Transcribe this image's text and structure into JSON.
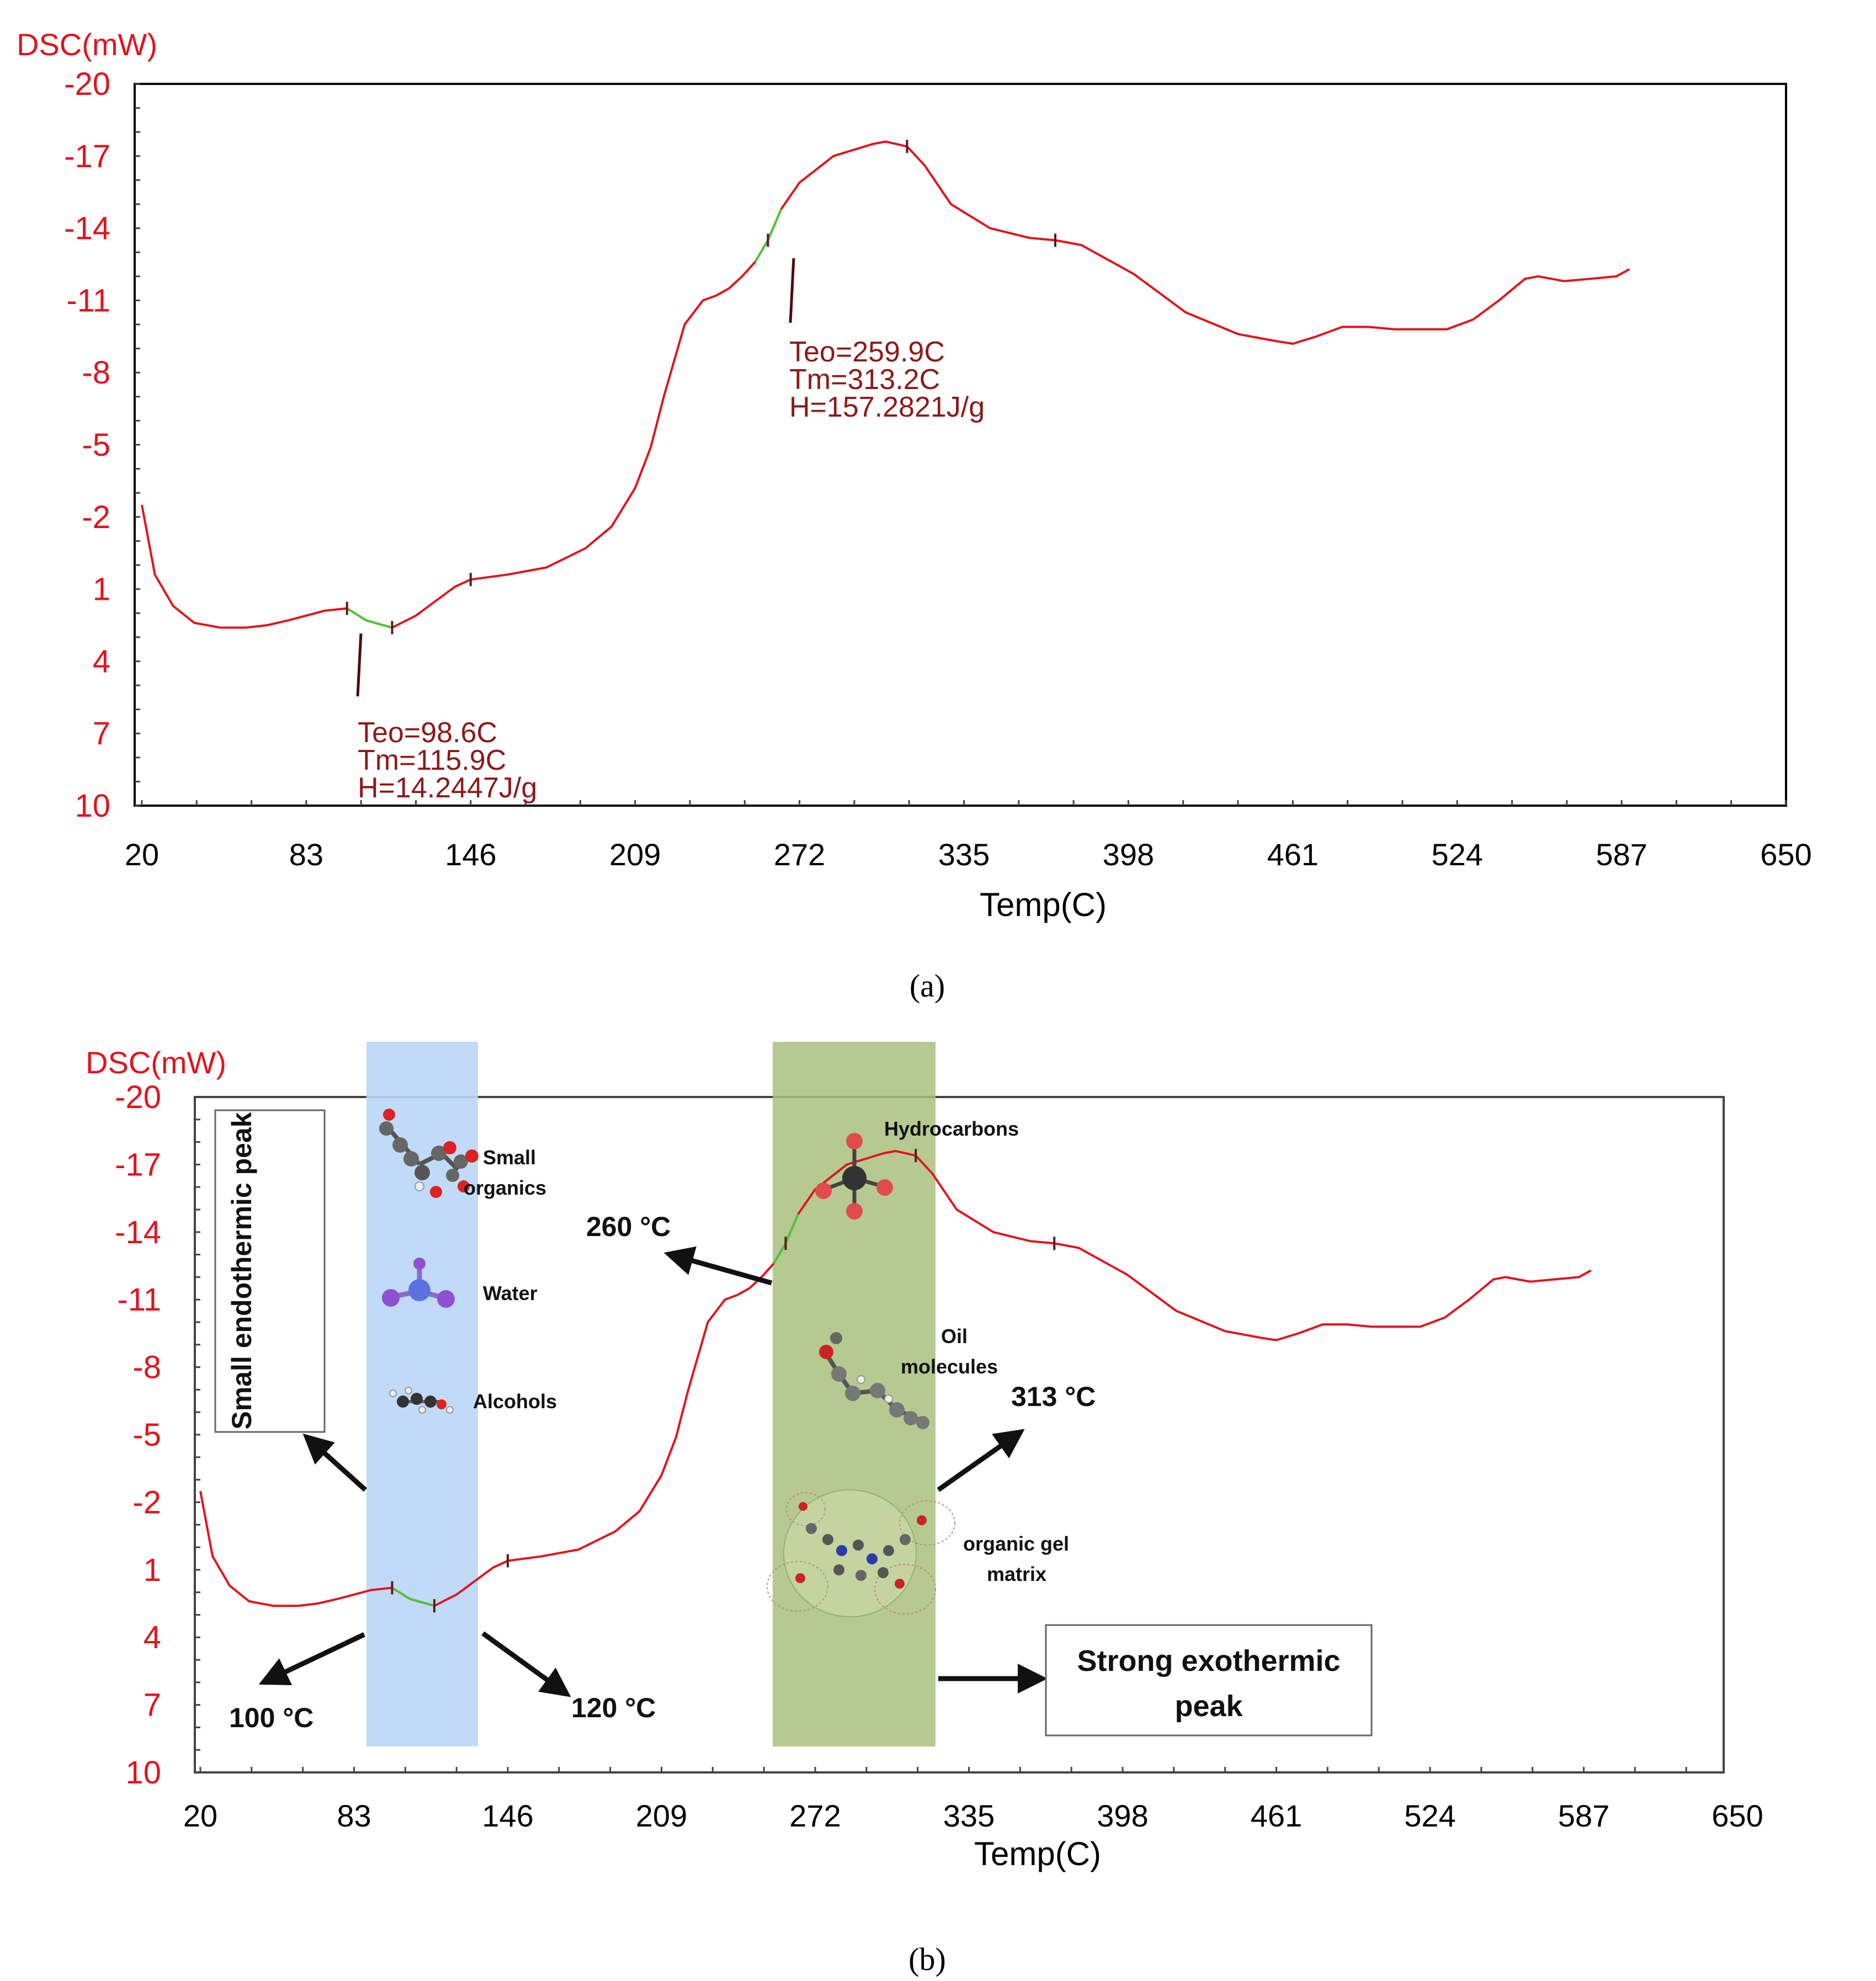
{
  "chart_data": [
    {
      "type": "line",
      "panel": "a",
      "panel_label": "(a)",
      "ylabel": "DSC(mW)",
      "xlabel": "Temp(C)",
      "xticks": [
        "20",
        "83",
        "146",
        "209",
        "272",
        "335",
        "398",
        "461",
        "524",
        "587",
        "650"
      ],
      "yticks": [
        "-20",
        "-17",
        "-14",
        "-11",
        "-8",
        "-5",
        "-2",
        "1",
        "4",
        "7",
        "10"
      ],
      "xlim": [
        20,
        650
      ],
      "ylim": [
        10,
        -20
      ],
      "series": [
        {
          "name": "DSC",
          "color": "#e0141e",
          "x": [
            20,
            25,
            32,
            40,
            50,
            60,
            68,
            76,
            83,
            90,
            98.6,
            106,
            115.9,
            125,
            140,
            146,
            160,
            175,
            190,
            200,
            209,
            215,
            220,
            228,
            235,
            240,
            245,
            250,
            255,
            259.9,
            265,
            272,
            285,
            300,
            305,
            313.2,
            320,
            330,
            345,
            360,
            370,
            380,
            400,
            420,
            440,
            455,
            461,
            470,
            480,
            490,
            500,
            510,
            520,
            530,
            540,
            550,
            555,
            565,
            575,
            585,
            590
          ],
          "y": [
            -2.5,
            0.4,
            1.7,
            2.4,
            2.6,
            2.6,
            2.5,
            2.3,
            2.1,
            1.9,
            1.8,
            2.3,
            2.6,
            2.1,
            0.9,
            0.6,
            0.4,
            0.1,
            -0.7,
            -1.6,
            -3.2,
            -4.9,
            -7.0,
            -10.0,
            -11.0,
            -11.2,
            -11.5,
            -12.0,
            -12.6,
            -13.5,
            -14.8,
            -15.9,
            -17.0,
            -17.5,
            -17.6,
            -17.4,
            -16.6,
            -15.0,
            -14.0,
            -13.6,
            -13.5,
            -13.3,
            -12.1,
            -10.5,
            -9.6,
            -9.3,
            -9.2,
            -9.5,
            -9.9,
            -9.9,
            -9.8,
            -9.8,
            -9.8,
            -10.2,
            -11.0,
            -11.9,
            -12.0,
            -11.8,
            -11.9,
            -12.0,
            -12.3
          ]
        }
      ],
      "annotations": [
        {
          "x": 98.6,
          "lines": [
            "Teo=98.6C",
            "Tm=115.9C",
            "H=14.2447J/g"
          ]
        },
        {
          "x": 259.9,
          "lines": [
            "Teo=259.9C",
            "Tm=313.2C",
            "H=157.2821J/g"
          ]
        }
      ],
      "markers_x": [
        98.6,
        115.9,
        146,
        259.9,
        313.2,
        370
      ]
    },
    {
      "type": "line",
      "panel": "b",
      "panel_label": "(b)",
      "ylabel": "DSC(mW)",
      "xlabel": "Temp(C)",
      "xticks": [
        "20",
        "83",
        "146",
        "209",
        "272",
        "335",
        "398",
        "461",
        "524",
        "587",
        "650"
      ],
      "yticks": [
        "-20",
        "-17",
        "-14",
        "-11",
        "-8",
        "-5",
        "-2",
        "1",
        "4",
        "7",
        "10"
      ],
      "xlim": [
        20,
        650
      ],
      "ylim": [
        10,
        -20
      ],
      "series": [
        {
          "name": "DSC",
          "color": "#e0141e",
          "x": [
            20,
            25,
            32,
            40,
            50,
            60,
            68,
            76,
            83,
            90,
            98.6,
            106,
            115.9,
            125,
            140,
            146,
            160,
            175,
            190,
            200,
            209,
            215,
            220,
            228,
            235,
            240,
            245,
            250,
            255,
            259.9,
            265,
            272,
            285,
            300,
            305,
            313.2,
            320,
            330,
            345,
            360,
            370,
            380,
            400,
            420,
            440,
            455,
            461,
            470,
            480,
            490,
            500,
            510,
            520,
            530,
            540,
            550,
            555,
            565,
            575,
            585,
            590
          ],
          "y": [
            -2.5,
            0.4,
            1.7,
            2.4,
            2.6,
            2.6,
            2.5,
            2.3,
            2.1,
            1.9,
            1.8,
            2.3,
            2.6,
            2.1,
            0.9,
            0.6,
            0.4,
            0.1,
            -0.7,
            -1.6,
            -3.2,
            -4.9,
            -7.0,
            -10.0,
            -11.0,
            -11.2,
            -11.5,
            -12.0,
            -12.6,
            -13.5,
            -14.8,
            -15.9,
            -17.0,
            -17.5,
            -17.6,
            -17.4,
            -16.6,
            -15.0,
            -14.0,
            -13.6,
            -13.5,
            -13.3,
            -12.1,
            -10.5,
            -9.6,
            -9.3,
            -9.2,
            -9.5,
            -9.9,
            -9.9,
            -9.8,
            -9.8,
            -9.8,
            -10.2,
            -11.0,
            -11.9,
            -12.0,
            -11.8,
            -11.9,
            -12.0,
            -12.3
          ]
        }
      ],
      "bands": [
        {
          "name": "blue-band",
          "x_range": [
            84,
            130
          ],
          "color": "#b9d6f7"
        },
        {
          "name": "green-band",
          "x_range": [
            240,
            306
          ],
          "color": "#a9c07e"
        }
      ],
      "text_annotations": {
        "small_endothermic": "Small endothermic peak",
        "small_organics": [
          "Small",
          "organics"
        ],
        "water": "Water",
        "alcohols": "Alcohols",
        "hydrocarbons": "Hydrocarbons",
        "oil_molecules": [
          "Oil",
          "molecules"
        ],
        "organic_gel_matrix": [
          "organic gel",
          "matrix"
        ],
        "t260": "260 °C",
        "t313": "313 °C",
        "t100": "100 °C",
        "t120": "120 °C",
        "strong_exothermic": [
          "Strong exothermic",
          "peak"
        ]
      },
      "markers_x": [
        98.6,
        115.9,
        146,
        259.9,
        313.2,
        370
      ]
    }
  ]
}
